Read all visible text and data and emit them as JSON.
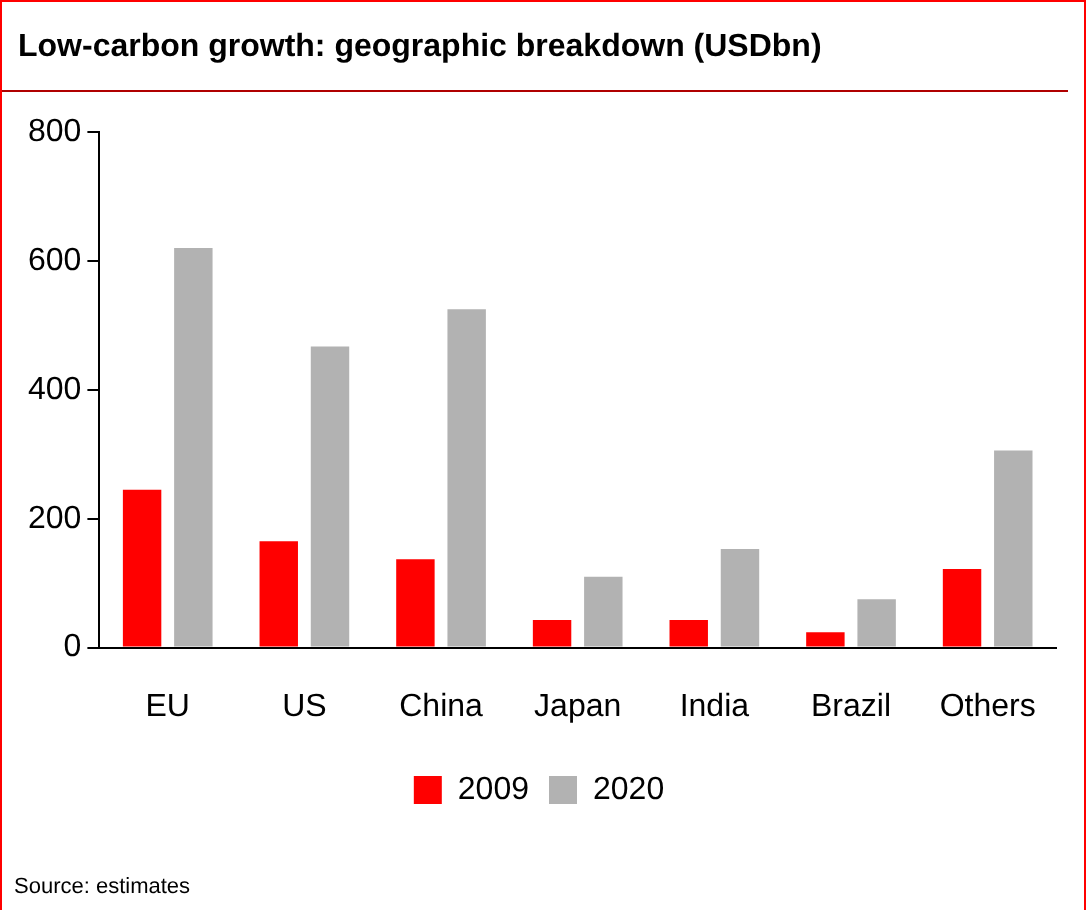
{
  "chart_data": {
    "type": "bar",
    "title": "Low-carbon growth: geographic breakdown (USDbn)",
    "categories": [
      "EU",
      "US",
      "China",
      "Japan",
      "India",
      "Brazil",
      "Others"
    ],
    "series": [
      {
        "name": "2009",
        "color": "#ff0000",
        "values": [
          245,
          165,
          137,
          43,
          43,
          24,
          122
        ]
      },
      {
        "name": "2020",
        "color": "#b2b2b2",
        "values": [
          620,
          467,
          525,
          110,
          153,
          75,
          306
        ]
      }
    ],
    "ylim": [
      0,
      800
    ],
    "yticks": [
      0,
      200,
      400,
      600,
      800
    ],
    "grid": false,
    "legend": "bottom",
    "annotations": [
      "Source: estimates"
    ]
  }
}
